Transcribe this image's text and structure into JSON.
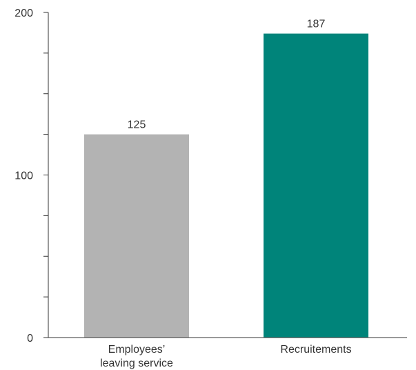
{
  "chart_data": {
    "type": "bar",
    "categories": [
      [
        "Employees’",
        "leaving service"
      ],
      [
        "Recruitements"
      ]
    ],
    "values": [
      125,
      187
    ],
    "value_labels": [
      "125",
      "187"
    ],
    "colors": [
      "#b3b3b3",
      "#00847a"
    ],
    "ylim": [
      0,
      200
    ],
    "y_ticks_labeled": [
      0,
      100,
      200
    ],
    "y_tick_labels": [
      "0",
      "100",
      "200"
    ],
    "y_minor_step": 25,
    "title": "",
    "xlabel": "",
    "ylabel": "",
    "grid": false,
    "legend": "none"
  }
}
